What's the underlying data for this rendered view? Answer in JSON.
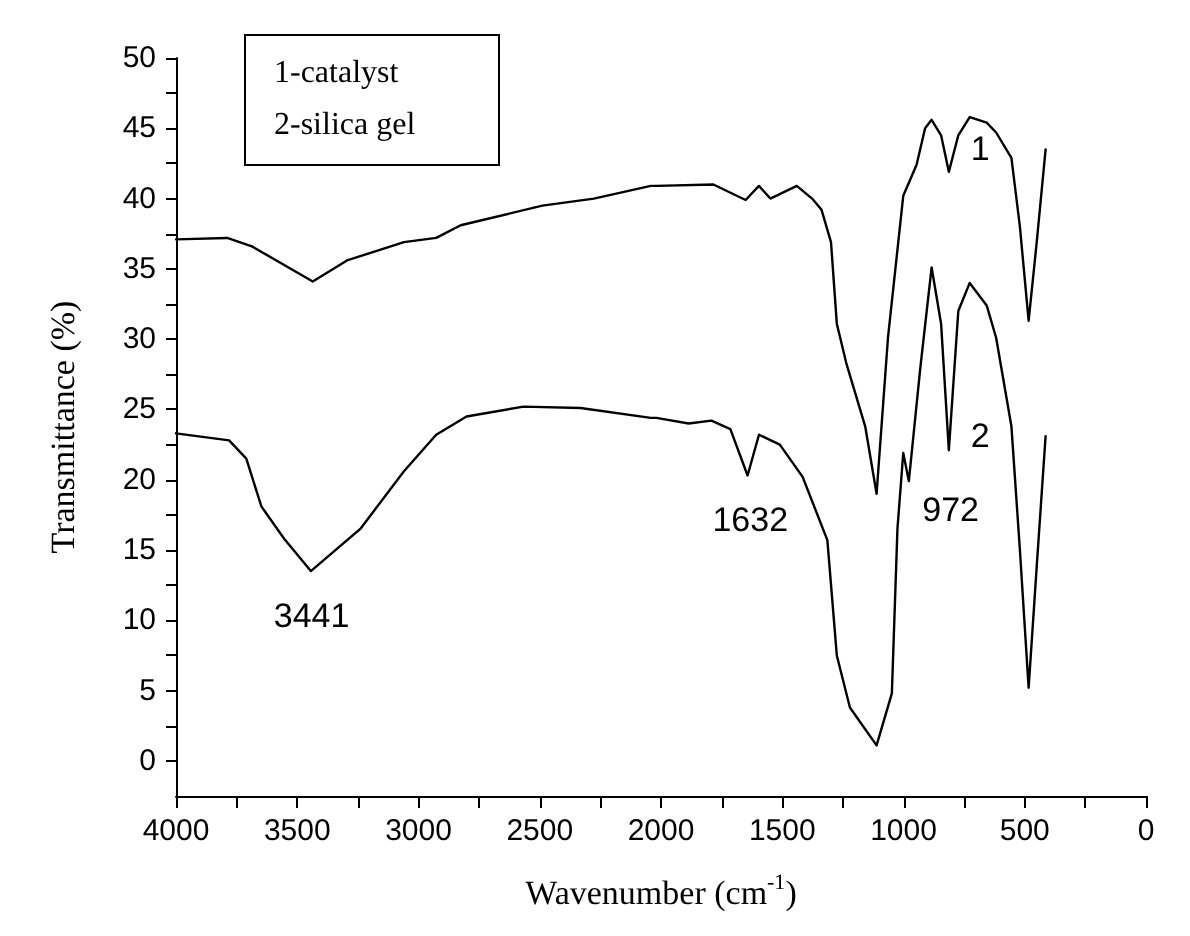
{
  "chart_data": {
    "type": "line",
    "xlabel": "Wavenumber (cm$^{-1}$)",
    "ylabel": "Transmittance (%)",
    "xlim": [
      4000,
      0
    ],
    "ylim": [
      -2.5,
      50
    ],
    "xticks": [
      4000,
      {
        "value": 3750,
        "label": null
      },
      3500,
      {
        "value": 3250,
        "label": null
      },
      3000,
      {
        "value": 2750,
        "label": null
      },
      2500,
      {
        "value": 2250,
        "label": null
      },
      2000,
      {
        "value": 1750,
        "label": null
      },
      1500,
      {
        "value": 1250,
        "label": null
      },
      1000,
      {
        "value": 750,
        "label": null
      },
      500,
      {
        "value": 250,
        "label": null
      },
      0
    ],
    "yticks": [
      0,
      {
        "value": 2.5,
        "label": null
      },
      5,
      {
        "value": 7.5,
        "label": null
      },
      10,
      {
        "value": 12.5,
        "label": null
      },
      15,
      {
        "value": 17.5,
        "label": null
      },
      20,
      {
        "value": 22.5,
        "label": null
      },
      25,
      {
        "value": 27.5,
        "label": null
      },
      30,
      {
        "value": 32.5,
        "label": null
      },
      35,
      {
        "value": 37.5,
        "label": null
      },
      40,
      {
        "value": 42.5,
        "label": null
      },
      45,
      {
        "value": 47.5,
        "label": null
      },
      50
    ],
    "grid": false,
    "legend": false,
    "marker": "none",
    "line_style": "solid",
    "annotations": [
      "1-catalyst",
      "2-silica gel",
      {
        "text": "3441",
        "x": 3441,
        "y": 13.5
      },
      {
        "text": "1632",
        "x": 1632,
        "y": 20.3
      },
      {
        "text": "972",
        "x": 972,
        "y": 19.9
      }
    ],
    "series": [
      {
        "name": "1",
        "color": "#000000",
        "x": [
          4000,
          3789,
          3687,
          3436,
          3295,
          3060,
          2927,
          2826,
          2489,
          2277,
          2042,
          2019,
          1784,
          1651,
          1596,
          1549,
          1440,
          1377,
          1338,
          1299,
          1275,
          1236,
          1158,
          1111,
          1064,
          1001,
          946,
          911,
          884,
          845,
          813,
          774,
          727,
          657,
          618,
          555,
          520,
          484,
          450,
          414
        ],
        "values": [
          37.1,
          37.2,
          36.6,
          34.1,
          35.6,
          36.9,
          37.2,
          38.1,
          39.5,
          40,
          40.9,
          40.9,
          41,
          39.9,
          40.9,
          40,
          40.9,
          40,
          39.2,
          36.9,
          31.1,
          28.3,
          23.8,
          19,
          30.1,
          40.2,
          42.4,
          45,
          45.6,
          44.5,
          41.9,
          44.5,
          45.8,
          45.4,
          44.7,
          42.9,
          38,
          31.3,
          37,
          43.5
        ]
      },
      {
        "name": "2",
        "color": "#000000",
        "x": [
          4000,
          3781,
          3710,
          3648,
          3554,
          3444,
          3240,
          3060,
          2927,
          2802,
          2567,
          2332,
          2042,
          2019,
          1886,
          1792,
          1714,
          1643,
          1596,
          1510,
          1416,
          1314,
          1275,
          1221,
          1111,
          1048,
          1025,
          1001,
          978,
          931,
          884,
          845,
          813,
          774,
          727,
          657,
          618,
          555,
          520,
          484,
          450,
          414
        ],
        "values": [
          23.3,
          22.8,
          21.5,
          18.1,
          15.8,
          13.5,
          16.5,
          20.6,
          23.2,
          24.5,
          25.2,
          25.1,
          24.4,
          24.4,
          24,
          24.2,
          23.6,
          20.3,
          23.2,
          22.5,
          20.2,
          15.7,
          7.5,
          3.8,
          1.1,
          4.8,
          16.5,
          21.9,
          19.9,
          27.9,
          35.1,
          31.1,
          22.1,
          32,
          34,
          32.4,
          30.1,
          23.8,
          15,
          5.2,
          14,
          23.1
        ]
      }
    ]
  }
}
